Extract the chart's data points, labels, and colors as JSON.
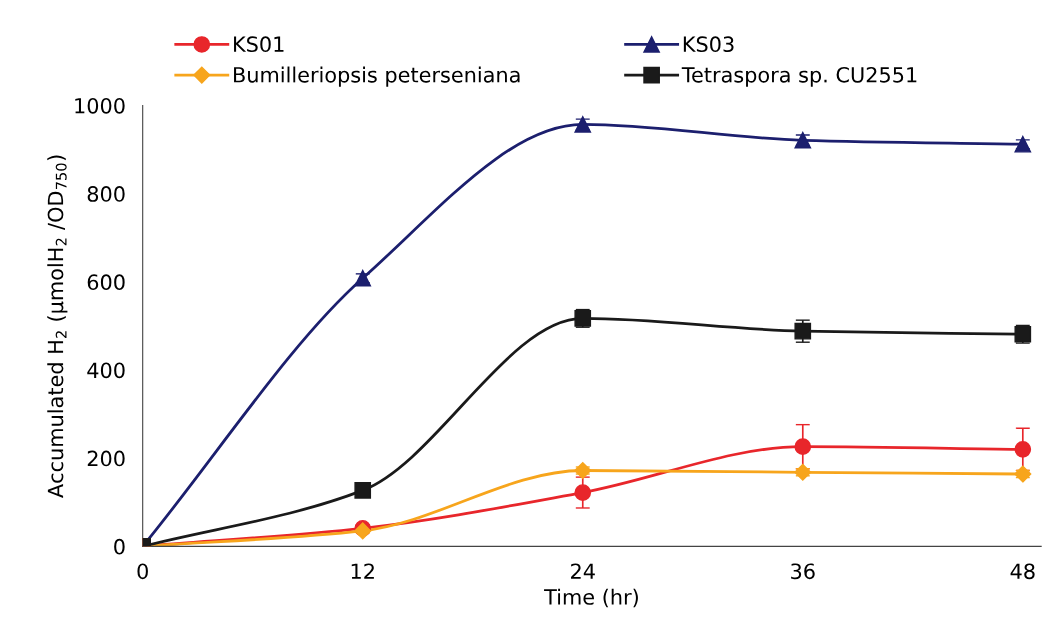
{
  "chart_data": {
    "type": "line",
    "xlabel": "Time (hr)",
    "ylabel": "Accumulated H$_{2}$ (μmolH$_{2}$ /OD$_{750}$)",
    "x": [
      0,
      12,
      24,
      36,
      48
    ],
    "xlim": [
      0,
      49
    ],
    "xticks": [
      0,
      12,
      24,
      36,
      48
    ],
    "ylim": [
      0,
      1000
    ],
    "yticks": [
      0,
      200,
      400,
      600,
      800,
      1000
    ],
    "grid": false,
    "legend": "top",
    "series": [
      {
        "name": "KS01",
        "color": "#e8262b",
        "marker": "circle",
        "values": [
          0,
          41,
          122,
          226,
          220
        ],
        "errors": [
          null,
          8,
          35,
          50,
          48
        ]
      },
      {
        "name": "KS03",
        "color": "#1c1f6e",
        "marker": "triangle",
        "values": [
          0,
          608,
          957,
          921,
          912
        ],
        "errors": [
          null,
          10,
          12,
          12,
          10
        ]
      },
      {
        "name": "Bumilleriopsis peterseniana",
        "color": "#f7a51c",
        "marker": "diamond",
        "values": [
          0,
          35,
          172,
          168,
          164
        ],
        "errors": [
          null,
          5,
          8,
          8,
          8
        ]
      },
      {
        "name": "Tetraspora sp. CU2551",
        "color": "#1a1a1a",
        "marker": "square",
        "values": [
          0,
          127,
          517,
          488,
          481
        ],
        "errors": [
          null,
          10,
          20,
          25,
          20
        ]
      }
    ]
  }
}
